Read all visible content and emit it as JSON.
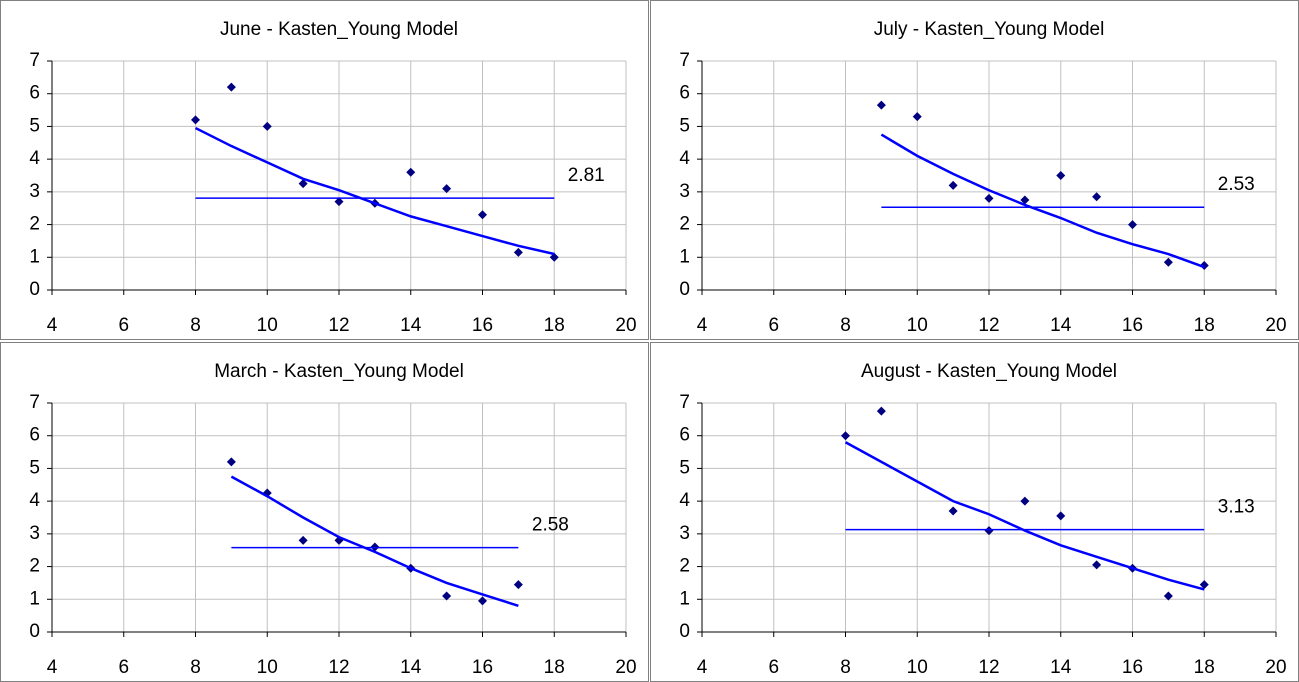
{
  "chart_data": [
    {
      "type": "scatter",
      "title": "June - Kasten_Young Model",
      "xlim": [
        4,
        20
      ],
      "xticks": [
        4,
        6,
        8,
        10,
        12,
        14,
        16,
        18,
        20
      ],
      "ylim": [
        0,
        7
      ],
      "yticks": [
        0,
        1,
        2,
        3,
        4,
        5,
        6,
        7
      ],
      "grid": true,
      "series": [
        {
          "type": "scatter",
          "color": "#000080",
          "x": [
            8,
            9,
            10,
            11,
            12,
            13,
            14,
            15,
            16,
            17,
            18
          ],
          "values": [
            5.2,
            6.2,
            5.0,
            3.25,
            2.7,
            2.65,
            3.6,
            3.1,
            2.3,
            1.15,
            1.0
          ]
        },
        {
          "type": "line",
          "color": "#0000ff",
          "x": [
            8,
            9,
            10,
            11,
            12,
            13,
            14,
            15,
            16,
            17,
            18
          ],
          "values": [
            4.95,
            4.4,
            3.9,
            3.4,
            3.05,
            2.65,
            2.25,
            1.95,
            1.65,
            1.35,
            1.1
          ]
        }
      ],
      "mean": 2.81,
      "mean_color": "#0000ff"
    },
    {
      "type": "scatter",
      "title": "July - Kasten_Young Model",
      "xlim": [
        4,
        20
      ],
      "xticks": [
        4,
        6,
        8,
        10,
        12,
        14,
        16,
        18,
        20
      ],
      "ylim": [
        0,
        7
      ],
      "yticks": [
        0,
        1,
        2,
        3,
        4,
        5,
        6,
        7
      ],
      "grid": true,
      "series": [
        {
          "type": "scatter",
          "color": "#000080",
          "x": [
            9,
            10,
            11,
            12,
            13,
            14,
            15,
            16,
            17,
            18
          ],
          "values": [
            5.65,
            5.3,
            3.2,
            2.8,
            2.75,
            3.5,
            2.85,
            2.0,
            0.85,
            0.75
          ]
        },
        {
          "type": "line",
          "color": "#0000ff",
          "x": [
            9,
            10,
            11,
            12,
            13,
            14,
            15,
            16,
            17,
            18
          ],
          "values": [
            4.75,
            4.1,
            3.55,
            3.05,
            2.6,
            2.2,
            1.75,
            1.4,
            1.1,
            0.7
          ]
        }
      ],
      "mean": 2.53,
      "mean_color": "#0000ff"
    },
    {
      "type": "scatter",
      "title": "March - Kasten_Young Model",
      "xlim": [
        4,
        20
      ],
      "xticks": [
        4,
        6,
        8,
        10,
        12,
        14,
        16,
        18,
        20
      ],
      "ylim": [
        0,
        7
      ],
      "yticks": [
        0,
        1,
        2,
        3,
        4,
        5,
        6,
        7
      ],
      "grid": true,
      "series": [
        {
          "type": "scatter",
          "color": "#000080",
          "x": [
            9,
            10,
            11,
            12,
            13,
            14,
            15,
            16,
            17
          ],
          "values": [
            5.2,
            4.25,
            2.8,
            2.8,
            2.6,
            1.95,
            1.1,
            0.95,
            1.45
          ]
        },
        {
          "type": "line",
          "color": "#0000ff",
          "x": [
            9,
            10,
            11,
            12,
            13,
            14,
            15,
            16,
            17
          ],
          "values": [
            4.75,
            4.15,
            3.5,
            2.9,
            2.45,
            1.95,
            1.5,
            1.15,
            0.8
          ]
        }
      ],
      "mean": 2.58,
      "mean_color": "#0000ff"
    },
    {
      "type": "scatter",
      "title": "August - Kasten_Young Model",
      "xlim": [
        4,
        20
      ],
      "xticks": [
        4,
        6,
        8,
        10,
        12,
        14,
        16,
        18,
        20
      ],
      "ylim": [
        0,
        7
      ],
      "yticks": [
        0,
        1,
        2,
        3,
        4,
        5,
        6,
        7
      ],
      "grid": true,
      "series": [
        {
          "type": "scatter",
          "color": "#000080",
          "x": [
            8,
            9,
            11,
            12,
            13,
            14,
            15,
            16,
            17,
            18
          ],
          "values": [
            6.0,
            6.75,
            3.7,
            3.1,
            4.0,
            3.55,
            2.05,
            1.95,
            1.1,
            1.45
          ]
        },
        {
          "type": "line",
          "color": "#0000ff",
          "x": [
            8,
            9,
            10,
            11,
            12,
            13,
            14,
            15,
            16,
            17,
            18
          ],
          "values": [
            5.8,
            5.2,
            4.6,
            4.0,
            3.6,
            3.1,
            2.65,
            2.3,
            1.95,
            1.6,
            1.3
          ]
        }
      ],
      "mean": 3.13,
      "mean_color": "#0000ff"
    }
  ]
}
